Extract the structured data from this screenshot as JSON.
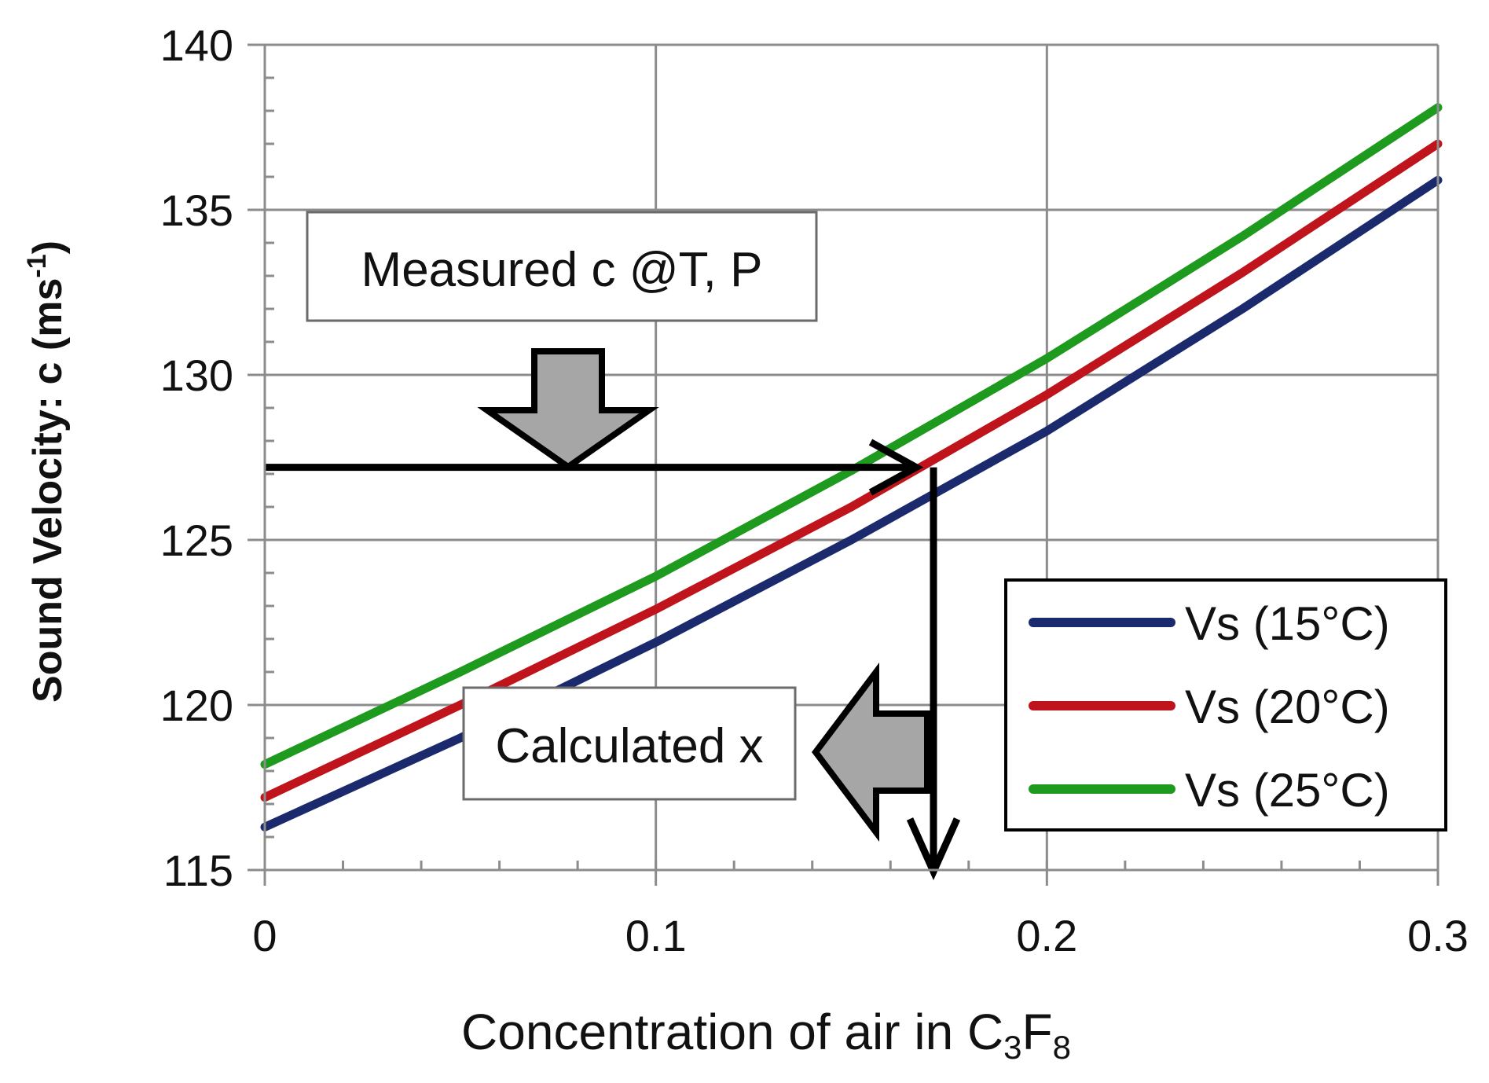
{
  "chart_data": {
    "type": "line",
    "title": "",
    "xlabel": {
      "prefix": "Concentration of air in C",
      "sub1": "3",
      "mid": "F",
      "sub2": "8"
    },
    "ylabel": {
      "main": "Sound Velocity: c (ms",
      "sup": "-1",
      "close": ")"
    },
    "xlim": [
      0,
      0.3
    ],
    "ylim": [
      115,
      140
    ],
    "xticks": [
      0,
      0.1,
      0.2,
      0.3
    ],
    "xtick_labels": [
      "0",
      "0.1",
      "0.2",
      "0.3"
    ],
    "yticks": [
      115,
      120,
      125,
      130,
      135,
      140
    ],
    "ytick_labels": [
      "115",
      "120",
      "125",
      "130",
      "135",
      "140"
    ],
    "grid": true,
    "x": [
      0,
      0.05,
      0.1,
      0.15,
      0.2,
      0.25,
      0.3
    ],
    "series": [
      {
        "name": "Vs (15°C)",
        "color": "#1a2a6c",
        "values": [
          116.3,
          119.0,
          121.9,
          125.0,
          128.3,
          132.0,
          135.9
        ]
      },
      {
        "name": "Vs (20°C)",
        "color": "#c0141c",
        "values": [
          117.2,
          120.0,
          122.9,
          126.0,
          129.4,
          133.1,
          137.0
        ]
      },
      {
        "name": "Vs (25°C)",
        "color": "#1e9a1e",
        "values": [
          118.2,
          121.0,
          123.9,
          127.1,
          130.5,
          134.2,
          138.1
        ]
      }
    ],
    "legend_position": "bottom-right",
    "annotations": {
      "measured_label": "Measured c  @T, P",
      "calculated_label": "Calculated x",
      "measured_value": 127.2,
      "calculated_x": 0.171
    }
  }
}
